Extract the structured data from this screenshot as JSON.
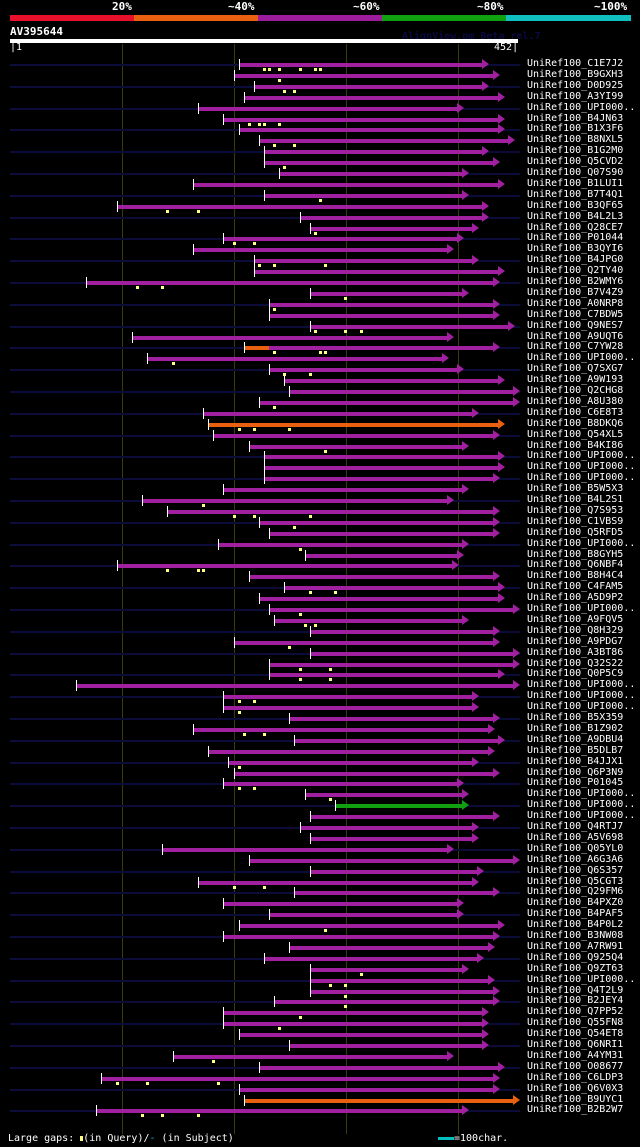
{
  "scale": {
    "labels": [
      "20%",
      "~40%",
      "~60%",
      "~80%",
      "~100%"
    ],
    "colors": [
      "#e8102a",
      "#e86010",
      "#9c1c9c",
      "#10a010",
      "#10c0c0"
    ]
  },
  "query": {
    "name": "AV395644",
    "start": "1",
    "end": "452",
    "length": 452
  },
  "watermark": "AlignView.pm Beta rel.7",
  "hits": [
    {
      "label": "UniRef100_C1E7J2",
      "s": 0.45,
      "e": 0.93,
      "c": "p",
      "g": [
        0.5,
        0.51,
        0.53,
        0.57,
        0.6,
        0.61
      ]
    },
    {
      "label": "UniRef100_B9GXH3",
      "s": 0.44,
      "e": 0.95,
      "c": "p",
      "g": [
        0.53
      ]
    },
    {
      "label": "UniRef100_D0D925",
      "s": 0.48,
      "e": 0.93,
      "c": "p",
      "g": [
        0.54,
        0.56
      ]
    },
    {
      "label": "UniRef100_A3YI99",
      "s": 0.46,
      "e": 0.96,
      "c": "p",
      "g": []
    },
    {
      "label": "UniRef100_UPI000..",
      "s": 0.37,
      "e": 0.88,
      "c": "p",
      "g": []
    },
    {
      "label": "UniRef100_B4JN63",
      "s": 0.42,
      "e": 0.96,
      "c": "p",
      "g": [
        0.47,
        0.49,
        0.5,
        0.53
      ]
    },
    {
      "label": "UniRef100_B1X3F6",
      "s": 0.45,
      "e": 0.96,
      "c": "p",
      "g": []
    },
    {
      "label": "UniRef100_B8NXL5",
      "s": 0.49,
      "e": 0.98,
      "c": "p",
      "g": [
        0.52,
        0.56
      ]
    },
    {
      "label": "UniRef100_B1G2M0",
      "s": 0.5,
      "e": 0.93,
      "c": "p",
      "g": []
    },
    {
      "label": "UniRef100_Q5CVD2",
      "s": 0.5,
      "e": 0.95,
      "c": "p",
      "g": [
        0.54
      ]
    },
    {
      "label": "UniRef100_Q07S90",
      "s": 0.53,
      "e": 0.89,
      "c": "p",
      "g": []
    },
    {
      "label": "UniRef100_B1LUI1",
      "s": 0.36,
      "e": 0.96,
      "c": "p",
      "g": []
    },
    {
      "label": "UniRef100_B7T4Q1",
      "s": 0.5,
      "e": 0.89,
      "c": "p",
      "g": [
        0.61
      ]
    },
    {
      "label": "UniRef100_B3QF65",
      "s": 0.21,
      "e": 0.93,
      "c": "p",
      "g": [
        0.31,
        0.37
      ]
    },
    {
      "label": "UniRef100_B4L2L3",
      "s": 0.57,
      "e": 0.93,
      "c": "p",
      "g": []
    },
    {
      "label": "UniRef100_Q28CE7",
      "s": 0.59,
      "e": 0.91,
      "c": "p",
      "g": [
        0.6
      ]
    },
    {
      "label": "UniRef100_P01044",
      "s": 0.42,
      "e": 0.88,
      "c": "p",
      "g": [
        0.44,
        0.48
      ]
    },
    {
      "label": "UniRef100_B3QYI6",
      "s": 0.36,
      "e": 0.86,
      "c": "p",
      "g": []
    },
    {
      "label": "UniRef100_B4JPG0",
      "s": 0.48,
      "e": 0.91,
      "c": "p",
      "g": [
        0.49,
        0.52,
        0.62
      ]
    },
    {
      "label": "UniRef100_Q2TY40",
      "s": 0.48,
      "e": 0.96,
      "c": "p",
      "g": []
    },
    {
      "label": "UniRef100_B2WMY6",
      "s": 0.15,
      "e": 0.95,
      "c": "p",
      "g": [
        0.25,
        0.3
      ]
    },
    {
      "label": "UniRef100_B7V4Z9",
      "s": 0.59,
      "e": 0.89,
      "c": "p",
      "g": [
        0.66
      ]
    },
    {
      "label": "UniRef100_A0NRP8",
      "s": 0.51,
      "e": 0.95,
      "c": "p",
      "g": [
        0.52
      ]
    },
    {
      "label": "UniRef100_C7BDW5",
      "s": 0.51,
      "e": 0.95,
      "c": "p",
      "g": []
    },
    {
      "label": "UniRef100_Q9NES7",
      "s": 0.59,
      "e": 0.98,
      "c": "p",
      "g": [
        0.6,
        0.66,
        0.69
      ]
    },
    {
      "label": "UniRef100_A9UQT6",
      "s": 0.24,
      "e": 0.86,
      "c": "p",
      "g": []
    },
    {
      "label": "UniRef100_C7YW28",
      "s": 0.46,
      "e": 0.95,
      "c": "p",
      "o": [
        0.46,
        0.51
      ],
      "g": [
        0.52,
        0.61,
        0.62
      ]
    },
    {
      "label": "UniRef100_UPI000..",
      "s": 0.27,
      "e": 0.85,
      "c": "p",
      "g": [
        0.32
      ]
    },
    {
      "label": "UniRef100_Q7SXG7",
      "s": 0.51,
      "e": 0.88,
      "c": "p",
      "g": [
        0.54,
        0.59
      ]
    },
    {
      "label": "UniRef100_A9W193",
      "s": 0.54,
      "e": 0.96,
      "c": "p",
      "g": []
    },
    {
      "label": "UniRef100_Q2CHG8",
      "s": 0.55,
      "e": 0.99,
      "c": "p",
      "g": []
    },
    {
      "label": "UniRef100_A8U380",
      "s": 0.49,
      "e": 0.99,
      "c": "p",
      "g": [
        0.52
      ]
    },
    {
      "label": "UniRef100_C6E8T3",
      "s": 0.38,
      "e": 0.91,
      "c": "p",
      "g": []
    },
    {
      "label": "UniRef100_B8DKQ6",
      "s": 0.39,
      "e": 0.96,
      "c": "o",
      "g": [
        0.45,
        0.48,
        0.55
      ]
    },
    {
      "label": "UniRef100_Q54XL5",
      "s": 0.4,
      "e": 0.95,
      "c": "p",
      "g": []
    },
    {
      "label": "UniRef100_B4KI86",
      "s": 0.47,
      "e": 0.89,
      "c": "p",
      "g": [
        0.62
      ]
    },
    {
      "label": "UniRef100_UPI000..",
      "s": 0.5,
      "e": 0.96,
      "c": "p",
      "g": []
    },
    {
      "label": "UniRef100_UPI000..",
      "s": 0.5,
      "e": 0.96,
      "c": "p",
      "g": []
    },
    {
      "label": "UniRef100_UPI000..",
      "s": 0.5,
      "e": 0.95,
      "c": "p",
      "g": []
    },
    {
      "label": "UniRef100_B5W5X3",
      "s": 0.42,
      "e": 0.89,
      "c": "p",
      "g": []
    },
    {
      "label": "UniRef100_B4L2S1",
      "s": 0.26,
      "e": 0.86,
      "c": "p",
      "g": [
        0.38
      ]
    },
    {
      "label": "UniRef100_Q7S953",
      "s": 0.31,
      "e": 0.95,
      "c": "p",
      "g": [
        0.44,
        0.48,
        0.59
      ]
    },
    {
      "label": "UniRef100_C1VBS9",
      "s": 0.49,
      "e": 0.95,
      "c": "p",
      "g": [
        0.56
      ]
    },
    {
      "label": "UniRef100_Q5RFD5",
      "s": 0.51,
      "e": 0.95,
      "c": "p",
      "g": []
    },
    {
      "label": "UniRef100_UPI000..",
      "s": 0.41,
      "e": 0.89,
      "c": "p",
      "g": [
        0.57
      ]
    },
    {
      "label": "UniRef100_B8GYH5",
      "s": 0.58,
      "e": 0.88,
      "c": "p",
      "g": []
    },
    {
      "label": "UniRef100_Q6NBF4",
      "s": 0.21,
      "e": 0.87,
      "c": "p",
      "g": [
        0.31,
        0.37,
        0.38
      ]
    },
    {
      "label": "UniRef100_B8H4C4",
      "s": 0.47,
      "e": 0.95,
      "c": "p",
      "g": []
    },
    {
      "label": "UniRef100_C4FAM5",
      "s": 0.54,
      "e": 0.96,
      "c": "p",
      "g": [
        0.59,
        0.64
      ]
    },
    {
      "label": "UniRef100_A5D9P2",
      "s": 0.49,
      "e": 0.96,
      "c": "p",
      "g": []
    },
    {
      "label": "UniRef100_UPI000..",
      "s": 0.51,
      "e": 0.99,
      "c": "p",
      "g": [
        0.57
      ]
    },
    {
      "label": "UniRef100_A9FQV5",
      "s": 0.52,
      "e": 0.89,
      "c": "p",
      "g": [
        0.58,
        0.6
      ]
    },
    {
      "label": "UniRef100_Q8H329",
      "s": 0.59,
      "e": 0.95,
      "c": "p",
      "g": []
    },
    {
      "label": "UniRef100_A9PDG7",
      "s": 0.44,
      "e": 0.95,
      "c": "p",
      "g": [
        0.55
      ]
    },
    {
      "label": "UniRef100_A3BT86",
      "s": 0.59,
      "e": 0.99,
      "c": "p",
      "g": []
    },
    {
      "label": "UniRef100_Q32S22",
      "s": 0.51,
      "e": 0.99,
      "c": "p",
      "g": [
        0.57,
        0.63
      ]
    },
    {
      "label": "UniRef100_Q0P5C9",
      "s": 0.51,
      "e": 0.96,
      "c": "p",
      "g": [
        0.57,
        0.63
      ]
    },
    {
      "label": "UniRef100_UPI000..",
      "s": 0.13,
      "e": 0.99,
      "c": "p",
      "g": []
    },
    {
      "label": "UniRef100_UPI000..",
      "s": 0.42,
      "e": 0.91,
      "c": "p",
      "g": [
        0.45,
        0.48
      ]
    },
    {
      "label": "UniRef100_UPI000..",
      "s": 0.42,
      "e": 0.91,
      "c": "p",
      "g": [
        0.45
      ]
    },
    {
      "label": "UniRef100_B5X359",
      "s": 0.55,
      "e": 0.95,
      "c": "p",
      "g": []
    },
    {
      "label": "UniRef100_B1Z902",
      "s": 0.36,
      "e": 0.94,
      "c": "p",
      "g": [
        0.46,
        0.5
      ]
    },
    {
      "label": "UniRef100_A9DBU4",
      "s": 0.56,
      "e": 0.96,
      "c": "p",
      "g": []
    },
    {
      "label": "UniRef100_B5DLB7",
      "s": 0.39,
      "e": 0.94,
      "c": "p",
      "g": []
    },
    {
      "label": "UniRef100_B4JJX1",
      "s": 0.43,
      "e": 0.91,
      "c": "p",
      "g": [
        0.45
      ]
    },
    {
      "label": "UniRef100_Q6P3N9",
      "s": 0.44,
      "e": 0.95,
      "c": "p",
      "g": []
    },
    {
      "label": "UniRef100_P01045",
      "s": 0.42,
      "e": 0.88,
      "c": "p",
      "g": [
        0.45,
        0.48
      ]
    },
    {
      "label": "UniRef100_UPI000..",
      "s": 0.58,
      "e": 0.89,
      "c": "p",
      "g": [
        0.63
      ]
    },
    {
      "label": "UniRef100_UPI000..",
      "s": 0.64,
      "e": 0.89,
      "c": "g",
      "g": []
    },
    {
      "label": "UniRef100_UPI000..",
      "s": 0.59,
      "e": 0.95,
      "c": "p",
      "g": []
    },
    {
      "label": "UniRef100_Q4RTJ7",
      "s": 0.57,
      "e": 0.91,
      "c": "p",
      "g": []
    },
    {
      "label": "UniRef100_A5V698",
      "s": 0.59,
      "e": 0.91,
      "c": "p",
      "g": []
    },
    {
      "label": "UniRef100_Q05YL0",
      "s": 0.3,
      "e": 0.86,
      "c": "p",
      "g": []
    },
    {
      "label": "UniRef100_A6G3A6",
      "s": 0.47,
      "e": 0.99,
      "c": "p",
      "g": []
    },
    {
      "label": "UniRef100_Q6S357",
      "s": 0.59,
      "e": 0.92,
      "c": "p",
      "g": []
    },
    {
      "label": "UniRef100_Q5CGT3",
      "s": 0.37,
      "e": 0.91,
      "c": "p",
      "g": [
        0.44,
        0.5
      ]
    },
    {
      "label": "UniRef100_Q29FM6",
      "s": 0.56,
      "e": 0.95,
      "c": "p",
      "g": []
    },
    {
      "label": "UniRef100_B4PXZ0",
      "s": 0.42,
      "e": 0.88,
      "c": "p",
      "g": []
    },
    {
      "label": "UniRef100_B4PAF5",
      "s": 0.51,
      "e": 0.88,
      "c": "p",
      "g": []
    },
    {
      "label": "UniRef100_B4P0L2",
      "s": 0.45,
      "e": 0.96,
      "c": "p",
      "g": [
        0.62
      ]
    },
    {
      "label": "UniRef100_B3NW08",
      "s": 0.42,
      "e": 0.95,
      "c": "p",
      "g": []
    },
    {
      "label": "UniRef100_A7RW91",
      "s": 0.55,
      "e": 0.94,
      "c": "p",
      "g": []
    },
    {
      "label": "UniRef100_Q925Q4",
      "s": 0.5,
      "e": 0.92,
      "c": "p",
      "g": []
    },
    {
      "label": "UniRef100_Q9ZT63",
      "s": 0.59,
      "e": 0.89,
      "c": "p",
      "g": [
        0.69
      ]
    },
    {
      "label": "UniRef100_UPI000..",
      "s": 0.59,
      "e": 0.94,
      "c": "p",
      "g": [
        0.63,
        0.66
      ]
    },
    {
      "label": "UniRef100_Q4T2L9",
      "s": 0.59,
      "e": 0.95,
      "c": "p",
      "g": [
        0.66
      ]
    },
    {
      "label": "UniRef100_B2JEY4",
      "s": 0.52,
      "e": 0.95,
      "c": "p",
      "g": [
        0.66
      ]
    },
    {
      "label": "UniRef100_Q7PP52",
      "s": 0.42,
      "e": 0.93,
      "c": "p",
      "g": [
        0.57
      ]
    },
    {
      "label": "UniRef100_Q55FN8",
      "s": 0.42,
      "e": 0.93,
      "c": "p",
      "g": [
        0.53
      ]
    },
    {
      "label": "UniRef100_Q54ET8",
      "s": 0.45,
      "e": 0.93,
      "c": "p",
      "g": []
    },
    {
      "label": "UniRef100_Q6NRI1",
      "s": 0.55,
      "e": 0.93,
      "c": "p",
      "g": []
    },
    {
      "label": "UniRef100_A4YM31",
      "s": 0.32,
      "e": 0.86,
      "c": "p",
      "g": [
        0.4
      ]
    },
    {
      "label": "UniRef100_O08677",
      "s": 0.49,
      "e": 0.96,
      "c": "p",
      "g": []
    },
    {
      "label": "UniRef100_C6LDP3",
      "s": 0.18,
      "e": 0.95,
      "c": "p",
      "g": [
        0.21,
        0.27,
        0.41
      ]
    },
    {
      "label": "UniRef100_Q6V0X3",
      "s": 0.45,
      "e": 0.95,
      "c": "p",
      "g": []
    },
    {
      "label": "UniRef100_B9UYC1",
      "s": 0.46,
      "e": 0.99,
      "c": "o",
      "g": []
    },
    {
      "label": "UniRef100_B2B2W7",
      "s": 0.17,
      "e": 0.89,
      "c": "p",
      "g": [
        0.26,
        0.3,
        0.37
      ]
    }
  ],
  "footer": {
    "gaps_label": "Large gaps:",
    "query_label": "(in Query)/",
    "subject_mark": "-",
    "subject_label": " (in Subject)",
    "scale_label": "=100char."
  }
}
